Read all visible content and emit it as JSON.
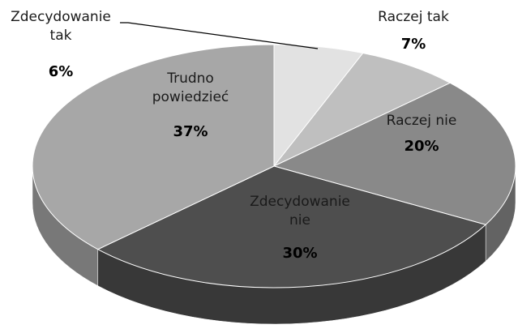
{
  "chart_data": {
    "type": "pie",
    "categories": [
      "Zdecydowanie\ntak",
      "Raczej tak",
      "Raczej nie",
      "Zdecydowanie\nnie",
      "Trudno\npowiedzieć"
    ],
    "values": [
      6,
      7,
      20,
      30,
      37
    ],
    "value_labels": [
      "6%",
      "7%",
      "20%",
      "30%",
      "37%"
    ],
    "colors": [
      "#e2e2e2",
      "#bfbfbf",
      "#898989",
      "#4e4e4e",
      "#a7a7a7"
    ]
  }
}
